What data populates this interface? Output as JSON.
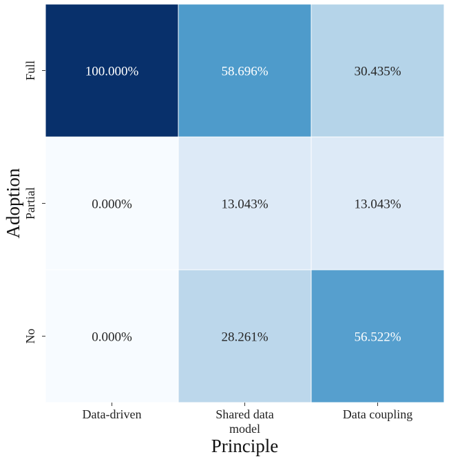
{
  "chart_data": {
    "type": "heatmap",
    "xlabel": "Principle",
    "ylabel": "Adoption",
    "x_categories": [
      [
        "Data-driven"
      ],
      [
        "Shared data",
        "model"
      ],
      [
        "Data coupling"
      ]
    ],
    "y_categories": [
      "Full",
      "Partial",
      "No"
    ],
    "values": [
      [
        100.0,
        58.696,
        30.435
      ],
      [
        0.0,
        13.043,
        13.043
      ],
      [
        0.0,
        28.261,
        56.522
      ]
    ],
    "cell_labels": [
      [
        "100.000%",
        "58.696%",
        "30.435%"
      ],
      [
        "0.000%",
        "13.043%",
        "13.043%"
      ],
      [
        "0.000%",
        "28.261%",
        "56.522%"
      ]
    ],
    "colormap": "Blues",
    "vmin": 0,
    "vmax": 100,
    "colorbar": false
  }
}
